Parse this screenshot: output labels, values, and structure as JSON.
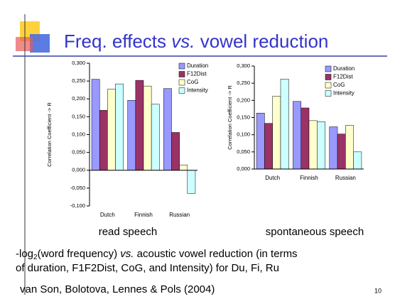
{
  "slide": {
    "title": [
      "Freq. effects ",
      "vs.",
      " vowel reduction"
    ],
    "caption_lines": [
      [
        "-log",
        "2",
        "(word frequency) ",
        "vs.",
        " acoustic vowel reduction (in terms"
      ],
      [
        "of duration, F1F2Dist, CoG, and Intensity) for Du, Fi, Ru"
      ]
    ],
    "citation": "van Son, Bolotova, Lennes & Pols (2004)",
    "page_number": "10"
  },
  "chart_data": [
    {
      "type": "bar",
      "caption": "read speech",
      "ylabel": "Correlation Coefficient -> R",
      "categories": [
        "Dutch",
        "Finnish",
        "Russian"
      ],
      "series": [
        {
          "name": "Duration",
          "color": "#9999ff",
          "values": [
            0.255,
            0.196,
            0.229
          ]
        },
        {
          "name": "F12Dist",
          "color": "#993366",
          "values": [
            0.168,
            0.252,
            0.106
          ]
        },
        {
          "name": "CoG",
          "color": "#ffffcc",
          "values": [
            0.227,
            0.236,
            0.015
          ]
        },
        {
          "name": "Intensity",
          "color": "#ccffff",
          "values": [
            0.242,
            0.185,
            -0.065
          ]
        }
      ],
      "ylim": [
        -0.1,
        0.3
      ],
      "yticks": [
        {
          "value": -0.1,
          "label": "-0,100"
        },
        {
          "value": -0.05,
          "label": "-0,050"
        },
        {
          "value": 0,
          "label": "0,000"
        },
        {
          "value": 0.05,
          "label": "0,050"
        },
        {
          "value": 0.1,
          "label": "0,100"
        },
        {
          "value": 0.15,
          "label": "0,150"
        },
        {
          "value": 0.2,
          "label": "0,200"
        },
        {
          "value": 0.25,
          "label": "0,250"
        },
        {
          "value": 0.3,
          "label": "0,300"
        }
      ],
      "legend": "upper right"
    },
    {
      "type": "bar",
      "caption": "spontaneous speech",
      "ylabel": "Correlation Coefficient -> R",
      "categories": [
        "Dutch",
        "Finnish",
        "Russian"
      ],
      "series": [
        {
          "name": "Duration",
          "color": "#9999ff",
          "values": [
            0.163,
            0.197,
            0.123
          ]
        },
        {
          "name": "F12Dist",
          "color": "#993366",
          "values": [
            0.133,
            0.178,
            0.102
          ]
        },
        {
          "name": "CoG",
          "color": "#ffffcc",
          "values": [
            0.212,
            0.141,
            0.127
          ]
        },
        {
          "name": "Intensity",
          "color": "#ccffff",
          "values": [
            0.262,
            0.138,
            0.05
          ]
        }
      ],
      "ylim": [
        0,
        0.3
      ],
      "yticks": [
        {
          "value": 0,
          "label": "0,000"
        },
        {
          "value": 0.05,
          "label": "0,050"
        },
        {
          "value": 0.1,
          "label": "0,100"
        },
        {
          "value": 0.15,
          "label": "0,150"
        },
        {
          "value": 0.2,
          "label": "0,200"
        },
        {
          "value": 0.25,
          "label": "0,250"
        },
        {
          "value": 0.3,
          "label": "0,300"
        }
      ],
      "legend": "upper right"
    }
  ]
}
